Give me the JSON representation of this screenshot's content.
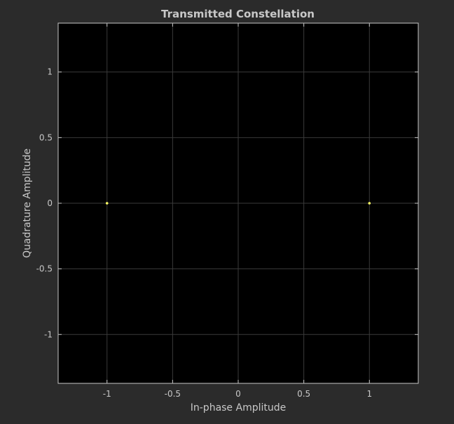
{
  "chart_data": {
    "type": "scatter",
    "title": "Transmitted Constellation",
    "xlabel": "In-phase Amplitude",
    "ylabel": "Quadrature Amplitude",
    "xlim": [
      -1.3724,
      1.3724
    ],
    "ylim": [
      -1.3724,
      1.3724
    ],
    "xticks": [
      -1,
      -0.5,
      0,
      0.5,
      1
    ],
    "yticks": [
      -1,
      -0.5,
      0,
      0.5,
      1
    ],
    "grid": true,
    "background_color": "#2b2b2b",
    "plot_background_color": "#000000",
    "marker_color": "#ffff66",
    "points": [
      {
        "x": -1,
        "y": 0
      },
      {
        "x": 1,
        "y": 0
      }
    ]
  }
}
